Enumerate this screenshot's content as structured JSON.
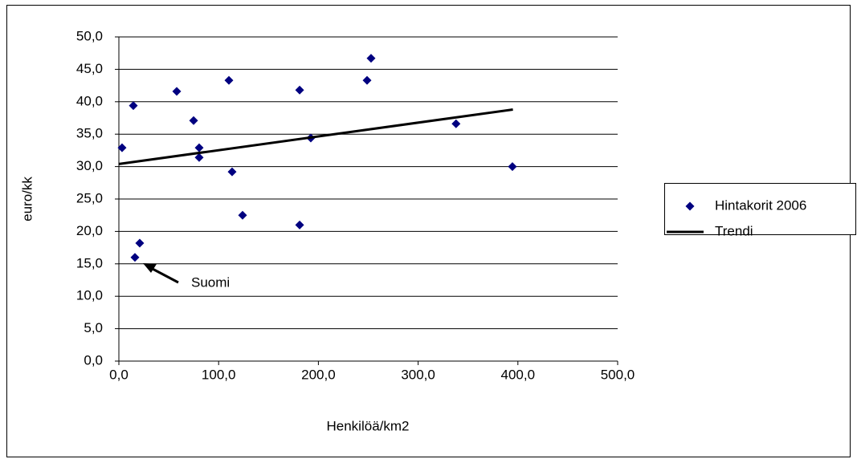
{
  "chart_data": {
    "type": "scatter",
    "x_label": "Henkilöä/km2",
    "y_label": "euro/kk",
    "annotation": "Suomi",
    "xlim": [
      0,
      500
    ],
    "xticks": [
      {
        "value": 0,
        "label": "0,0"
      },
      {
        "value": 100,
        "label": "100,0"
      },
      {
        "value": 200,
        "label": "200,0"
      },
      {
        "value": 300,
        "label": "300,0"
      },
      {
        "value": 400,
        "label": "400,0"
      },
      {
        "value": 500,
        "label": "500,0"
      }
    ],
    "ylim": [
      0,
      50
    ],
    "yticks": [
      {
        "value": 0,
        "label": "0,0"
      },
      {
        "value": 5,
        "label": "5,0"
      },
      {
        "value": 10,
        "label": "10,0"
      },
      {
        "value": 15,
        "label": "15,0"
      },
      {
        "value": 20,
        "label": "20,0"
      },
      {
        "value": 25,
        "label": "25,0"
      },
      {
        "value": 30,
        "label": "30,0"
      },
      {
        "value": 35,
        "label": "35,0"
      },
      {
        "value": 40,
        "label": "40,0"
      },
      {
        "value": 45,
        "label": "45,0"
      },
      {
        "value": 50,
        "label": "50,0"
      }
    ],
    "grid": true,
    "legend": "right",
    "series": [
      {
        "name": "Hintakorit 2006",
        "color": "#000080",
        "mode": "markers",
        "x": [
          3.2,
          14.5,
          16.1,
          20.9,
          58,
          74.9,
          80.5,
          80.5,
          110.3,
          113.5,
          124,
          181.2,
          181.2,
          192.4,
          252.8,
          248.8,
          338,
          394.5
        ],
        "values": [
          32.9,
          39.4,
          16.0,
          18.2,
          41.6,
          37.1,
          32.9,
          31.4,
          43.3,
          29.2,
          22.5,
          41.8,
          21.0,
          34.4,
          46.7,
          43.3,
          36.6,
          30.0
        ]
      },
      {
        "name": "Trendi",
        "color": "#000000",
        "mode": "line",
        "x": [
          0,
          395
        ],
        "values": [
          30.4,
          38.8
        ]
      }
    ]
  }
}
